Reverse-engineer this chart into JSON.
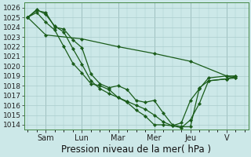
{
  "title": "",
  "xlabel": "Pression niveau de la mer( hPa )",
  "ylabel": "",
  "bg_color": "#cce8e8",
  "grid_color": "#aacccc",
  "major_grid_color": "#88aaaa",
  "line_color": "#1a5c1a",
  "ylim": [
    1013.5,
    1026.5
  ],
  "yticks": [
    1014,
    1015,
    1016,
    1017,
    1018,
    1019,
    1020,
    1021,
    1022,
    1023,
    1024,
    1025,
    1026
  ],
  "day_labels": [
    "Sam",
    "Lun",
    "Mar",
    "Mer",
    "Jeu",
    "V"
  ],
  "day_x": [
    1,
    3,
    5,
    7,
    9,
    11
  ],
  "xlim": [
    -0.2,
    12.2
  ],
  "lines": [
    {
      "x": [
        0,
        0.5,
        1,
        1.5,
        2,
        2.5,
        3,
        3.5,
        4,
        4.5,
        5,
        5.5,
        6,
        6.5,
        7,
        7.5,
        8,
        8.5,
        9,
        9.5,
        10,
        11,
        11.5
      ],
      "y": [
        1025.0,
        1025.7,
        1025.5,
        1024.0,
        1023.8,
        1022.7,
        1021.9,
        1019.2,
        1018.2,
        1017.8,
        1018.0,
        1017.6,
        1016.5,
        1016.3,
        1016.5,
        1015.2,
        1014.0,
        1013.8,
        1013.8,
        1017.8,
        1018.5,
        1018.7,
        1018.8
      ]
    },
    {
      "x": [
        0,
        0.5,
        1,
        1.5,
        2,
        2.5,
        3,
        3.5,
        4,
        4.5,
        5,
        5.5,
        6,
        6.5,
        7,
        7.5,
        8,
        8.5,
        9,
        9.5,
        10,
        11,
        11.5
      ],
      "y": [
        1025.0,
        1025.8,
        1025.3,
        1024.1,
        1023.5,
        1021.8,
        1020.2,
        1018.5,
        1017.7,
        1017.2,
        1016.8,
        1016.4,
        1016.0,
        1015.6,
        1015.0,
        1014.3,
        1013.9,
        1013.7,
        1014.5,
        1016.2,
        1018.5,
        1018.7,
        1019.0
      ]
    },
    {
      "x": [
        0,
        0.5,
        1,
        1.5,
        2,
        2.5,
        3,
        3.5,
        4,
        4.5,
        5,
        5.5,
        6,
        6.5,
        7,
        7.5,
        8,
        8.5,
        9,
        9.5,
        10,
        11,
        11.5
      ],
      "y": [
        1025.0,
        1025.5,
        1024.5,
        1023.7,
        1022.0,
        1020.3,
        1019.3,
        1018.2,
        1018.0,
        1017.6,
        1016.8,
        1016.3,
        1015.5,
        1014.9,
        1014.0,
        1014.0,
        1013.9,
        1014.2,
        1016.5,
        1017.7,
        1018.8,
        1019.0,
        1019.0
      ]
    },
    {
      "x": [
        0,
        1,
        3,
        5,
        7,
        9,
        11,
        11.5
      ],
      "y": [
        1025.0,
        1023.2,
        1022.8,
        1022.0,
        1021.3,
        1020.5,
        1019.0,
        1018.8
      ]
    }
  ],
  "marker": "D",
  "markersize": 2.2,
  "linewidth": 0.9,
  "xlabel_fontsize": 8.5,
  "ytick_fontsize": 6.5,
  "xtick_fontsize": 7
}
